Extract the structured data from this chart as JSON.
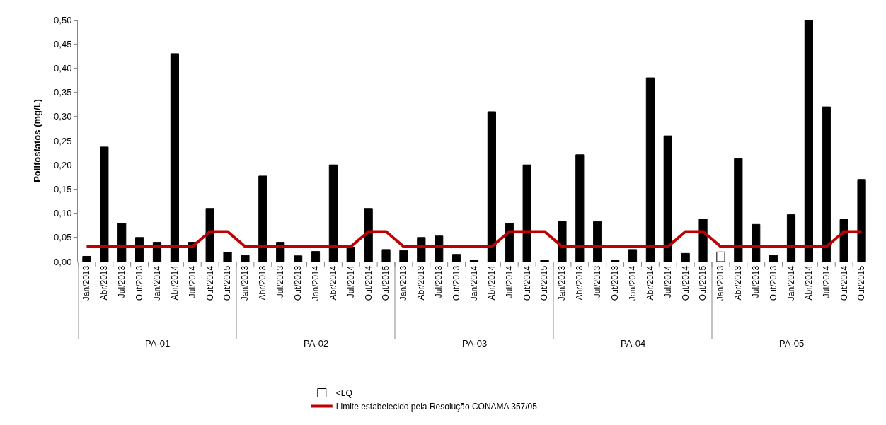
{
  "chart_data": {
    "type": "bar",
    "ylabel": "Polifosfatos (mg/L)",
    "categories": [
      "Jan/2013",
      "Abr/2013",
      "Jul/2013",
      "Out/2013",
      "Jan/2014",
      "Abr/2014",
      "Jul/2014",
      "Out/2014",
      "Out/2015",
      "Jan/2013",
      "Abr/2013",
      "Jul/2013",
      "Out/2013",
      "Jan/2014",
      "Abr/2014",
      "Jul/2014",
      "Out/2014",
      "Out/2015",
      "Jan/2013",
      "Abr/2013",
      "Jul/2013",
      "Out/2013",
      "Jan/2014",
      "Abr/2014",
      "Jul/2014",
      "Out/2014",
      "Out/2015",
      "Jan/2013",
      "Abr/2013",
      "Jul/2013",
      "Out/2013",
      "Jan/2014",
      "Abr/2014",
      "Jul/2014",
      "Out/2014",
      "Out/2015",
      "Jan/2013",
      "Abr/2013",
      "Jul/2013",
      "Out/2013",
      "Jan/2014",
      "Abr/2014",
      "Jul/2014",
      "Out/2014",
      "Out/2015"
    ],
    "series": [
      {
        "color": "#000000",
        "values": [
          0.011,
          0.237,
          0.079,
          0.05,
          0.04,
          0.43,
          0.04,
          0.11,
          0.019,
          0.013,
          0.177,
          0.04,
          0.012,
          0.021,
          0.2,
          0.03,
          0.11,
          0.025,
          0.023,
          0.05,
          0.053,
          0.015,
          0.003,
          0.31,
          0.079,
          0.2,
          0.003,
          0.084,
          0.221,
          0.083,
          0.003,
          0.025,
          0.38,
          0.26,
          0.017,
          0.088,
          null,
          0.213,
          0.077,
          0.013,
          0.097,
          0.5,
          0.32,
          0.087,
          0.17
        ]
      },
      {
        "name": "<LQ",
        "color": "#ffffff",
        "values": [
          null,
          null,
          null,
          null,
          null,
          null,
          null,
          null,
          null,
          null,
          null,
          null,
          null,
          null,
          null,
          null,
          null,
          null,
          null,
          null,
          null,
          null,
          null,
          null,
          null,
          null,
          null,
          null,
          null,
          null,
          null,
          null,
          null,
          null,
          null,
          null,
          0.02,
          null,
          null,
          null,
          null,
          null,
          null,
          null,
          null
        ]
      },
      {
        "name": "Limite estabelecido pela Resolução CONAMA 357/05",
        "type": "line",
        "color": "#c00000",
        "marker": "none",
        "values": [
          0.031,
          0.031,
          0.031,
          0.031,
          0.031,
          0.031,
          0.031,
          0.062,
          0.062,
          0.031,
          0.031,
          0.031,
          0.031,
          0.031,
          0.031,
          0.031,
          0.062,
          0.062,
          0.031,
          0.031,
          0.031,
          0.031,
          0.031,
          0.031,
          0.062,
          0.062,
          0.062,
          0.031,
          0.031,
          0.031,
          0.031,
          0.031,
          0.031,
          0.031,
          0.062,
          0.062,
          0.031,
          0.031,
          0.031,
          0.031,
          0.031,
          0.031,
          0.031,
          0.062,
          0.062
        ]
      }
    ],
    "ylim": [
      0,
      0.5
    ],
    "yticks": [
      {
        "value": 0,
        "label": "0,00"
      },
      {
        "value": 0.05,
        "label": "0,05"
      },
      {
        "value": 0.1,
        "label": "0,10"
      },
      {
        "value": 0.15,
        "label": "0,15"
      },
      {
        "value": 0.2,
        "label": "0,20"
      },
      {
        "value": 0.25,
        "label": "0,25"
      },
      {
        "value": 0.3,
        "label": "0,30"
      },
      {
        "value": 0.35,
        "label": "0,35"
      },
      {
        "value": 0.4,
        "label": "0,40"
      },
      {
        "value": 0.45,
        "label": "0,45"
      },
      {
        "value": 0.5,
        "label": "0,50"
      }
    ],
    "annotations": [
      "PA-01",
      "PA-02",
      "PA-03",
      "PA-04",
      "PA-05"
    ],
    "legend": "bottom"
  }
}
